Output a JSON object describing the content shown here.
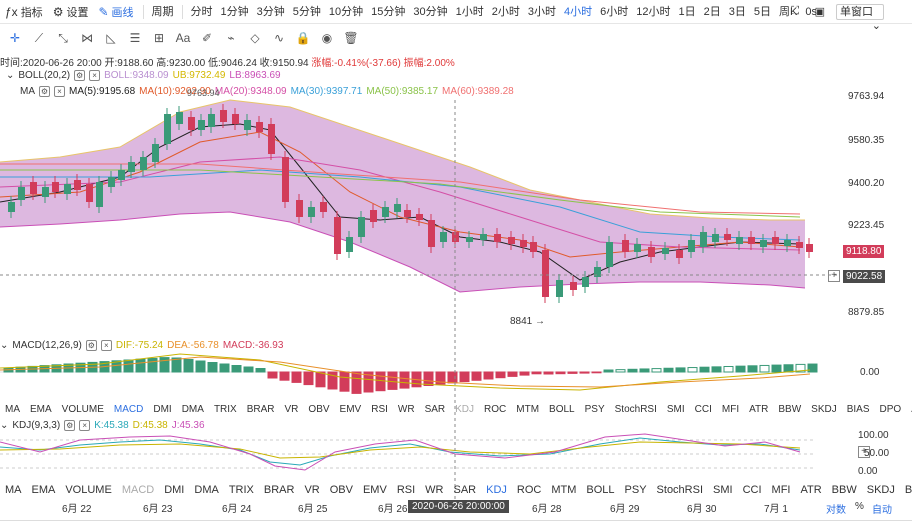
{
  "toolbar": {
    "indicator_label": "指标",
    "settings_label": "设置",
    "draw_label": "画线",
    "period_label": "周期",
    "timeframes": [
      "分时",
      "1分钟",
      "3分钟",
      "5分钟",
      "10分钟",
      "15分钟",
      "30分钟",
      "1小时",
      "2小时",
      "3小时",
      "4小时",
      "6小时",
      "12小时",
      "1日",
      "2日",
      "3日",
      "5日",
      "周K",
      "0s"
    ],
    "active_timeframe": "4小时",
    "window_select": "单窗口"
  },
  "ohlc": {
    "time_label": "时间:2020-06-26 20:00",
    "open": "开:9188.60",
    "high": "高:9230.00",
    "low": "低:9046.24",
    "close": "收:9150.94",
    "change": "涨幅:-0.41%(-37.66)",
    "amplitude": "振幅:2.00%"
  },
  "boll_legend": {
    "name": "BOLL(20,2)",
    "boll": "BOLL:9348.09",
    "ub": "UB:9732.49",
    "lb": "LB:8963.69"
  },
  "ma_legend": {
    "name": "MA",
    "ma5": "MA(5):9195.68",
    "ma10": "MA(10):9202.90",
    "ma20": "MA(20):9348.09",
    "ma30": "MA(30):9397.71",
    "ma50": "MA(50):9385.17",
    "ma60": "MA(60):9389.28"
  },
  "price_axis": {
    "ticks": [
      "9763.94",
      "9580.35",
      "9400.20",
      "9223.45",
      "9022.58",
      "8879.85"
    ],
    "last_price": "9118.80",
    "cursor_price": "9022.58",
    "low_marker": "8841",
    "high_marker": "9763.94"
  },
  "macd_legend": {
    "name": "MACD(12,26,9)",
    "dif": "DIF:-75.24",
    "dea": "DEA:-56.78",
    "macd": "MACD:-36.93",
    "zero_tick": "0.00"
  },
  "indicator_tabs_1": [
    "MA",
    "EMA",
    "VOLUME",
    "MACD",
    "DMI",
    "DMA",
    "TRIX",
    "BRAR",
    "VR",
    "OBV",
    "EMV",
    "RSI",
    "WR",
    "SAR",
    "KDJ",
    "ROC",
    "MTM",
    "BOLL",
    "PSY",
    "StochRSI",
    "SMI",
    "CCI",
    "MFI",
    "ATR",
    "BBW",
    "SKDJ",
    "BIAS",
    "DPO",
    "AO"
  ],
  "kdj_legend": {
    "name": "KDJ(9,3,3)",
    "k": "K:45.38",
    "d": "D:45.38",
    "j": "J:45.36",
    "tick_100": "100.00",
    "tick_50": "50.00",
    "tick_0": "0.00"
  },
  "indicator_tabs_2": [
    "MA",
    "EMA",
    "VOLUME",
    "MACD",
    "DMI",
    "DMA",
    "TRIX",
    "BRAR",
    "VR",
    "OBV",
    "EMV",
    "RSI",
    "WR",
    "SAR",
    "KDJ",
    "ROC",
    "MTM",
    "BOLL",
    "PSY",
    "StochRSI",
    "SMI",
    "CCI",
    "MFI",
    "ATR",
    "BBW",
    "SKDJ",
    "BIAS"
  ],
  "x_axis": {
    "dates": [
      "6月 22",
      "6月 23",
      "6月 24",
      "6月 25",
      "6月 26",
      "6月 28",
      "6月 29",
      "6月 30",
      "7月 1"
    ],
    "cursor_date": "2020-06-26 20:00:00"
  },
  "corner": {
    "log_label": "对数",
    "pct_label": "%",
    "auto_label": "自动"
  },
  "colors": {
    "up": "#3a9a78",
    "down": "#d23c5a",
    "accent": "#2d6fe0",
    "boll_fill": "#d9b0dd"
  }
}
